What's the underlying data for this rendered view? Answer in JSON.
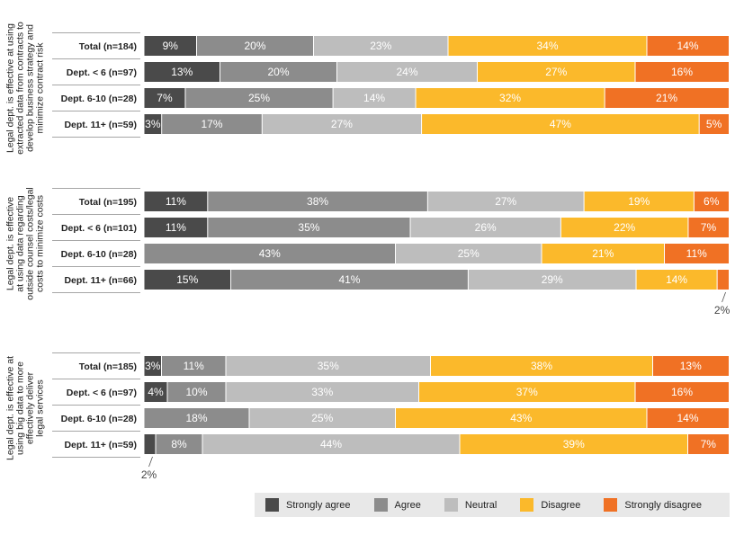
{
  "chart_data": {
    "type": "bar",
    "orientation": "horizontal",
    "stacked": true,
    "normalized": true,
    "value_format": "{v}%",
    "xlim": [
      0,
      100
    ],
    "legend": {
      "position": "bottom-right",
      "entries": [
        "Strongly agree",
        "Agree",
        "Neutral",
        "Disagree",
        "Strongly disagree"
      ]
    },
    "colors": [
      "#4a4a4a",
      "#8c8c8c",
      "#bdbdbd",
      "#fbb92b",
      "#f07124"
    ],
    "groups": [
      {
        "label": "Legal dept. is effective at using extracted data from contracts to develop business strategy and minimize contract risk",
        "label_lines": [
          "Legal dept. is effective at using",
          "extracted data from contracts to",
          "develop business strategy and",
          "minimize contract risk"
        ],
        "rows": [
          {
            "label": "Total (n=184)",
            "values": [
              9,
              20,
              23,
              34,
              14
            ]
          },
          {
            "label": "Dept. < 6 (n=97)",
            "values": [
              13,
              20,
              24,
              27,
              16
            ]
          },
          {
            "label": "Dept. 6-10 (n=28)",
            "values": [
              7,
              25,
              14,
              32,
              21
            ]
          },
          {
            "label": "Dept. 11+ (n=59)",
            "values": [
              3,
              17,
              27,
              47,
              5
            ]
          }
        ]
      },
      {
        "label": "Legal dept. is effective at using data regarding outside counsel costs/legal costs to minimize costs",
        "label_lines": [
          "Legal dept. is effective",
          "at using data regarding",
          "outside counsel costs/legal",
          "costs to minimize costs"
        ],
        "rows": [
          {
            "label": "Total (n=195)",
            "values": [
              11,
              38,
              27,
              19,
              6
            ]
          },
          {
            "label": "Dept. < 6 (n=101)",
            "values": [
              11,
              35,
              26,
              22,
              7
            ]
          },
          {
            "label": "Dept. 6-10 (n=28)",
            "values": [
              0,
              43,
              25,
              21,
              11
            ]
          },
          {
            "label": "Dept. 11+ (n=66)",
            "values": [
              15,
              41,
              29,
              14,
              2
            ]
          }
        ],
        "callout": {
          "row": 3,
          "segment": 4,
          "text": "2%"
        }
      },
      {
        "label": "Legal dept. is effective at using big data to more effectively deliver legal services",
        "label_lines": [
          "Legal dept. is effective at",
          "using big data to more",
          "effectively deliver",
          "legal services"
        ],
        "rows": [
          {
            "label": "Total (n=185)",
            "values": [
              3,
              11,
              35,
              38,
              13
            ]
          },
          {
            "label": "Dept. < 6 (n=97)",
            "values": [
              4,
              10,
              33,
              37,
              16
            ]
          },
          {
            "label": "Dept. 6-10 (n=28)",
            "values": [
              0,
              18,
              25,
              43,
              14
            ]
          },
          {
            "label": "Dept. 11+ (n=59)",
            "values": [
              2,
              8,
              44,
              39,
              7
            ]
          }
        ],
        "callout": {
          "row": 3,
          "segment": 0,
          "text": "2%"
        }
      }
    ]
  }
}
